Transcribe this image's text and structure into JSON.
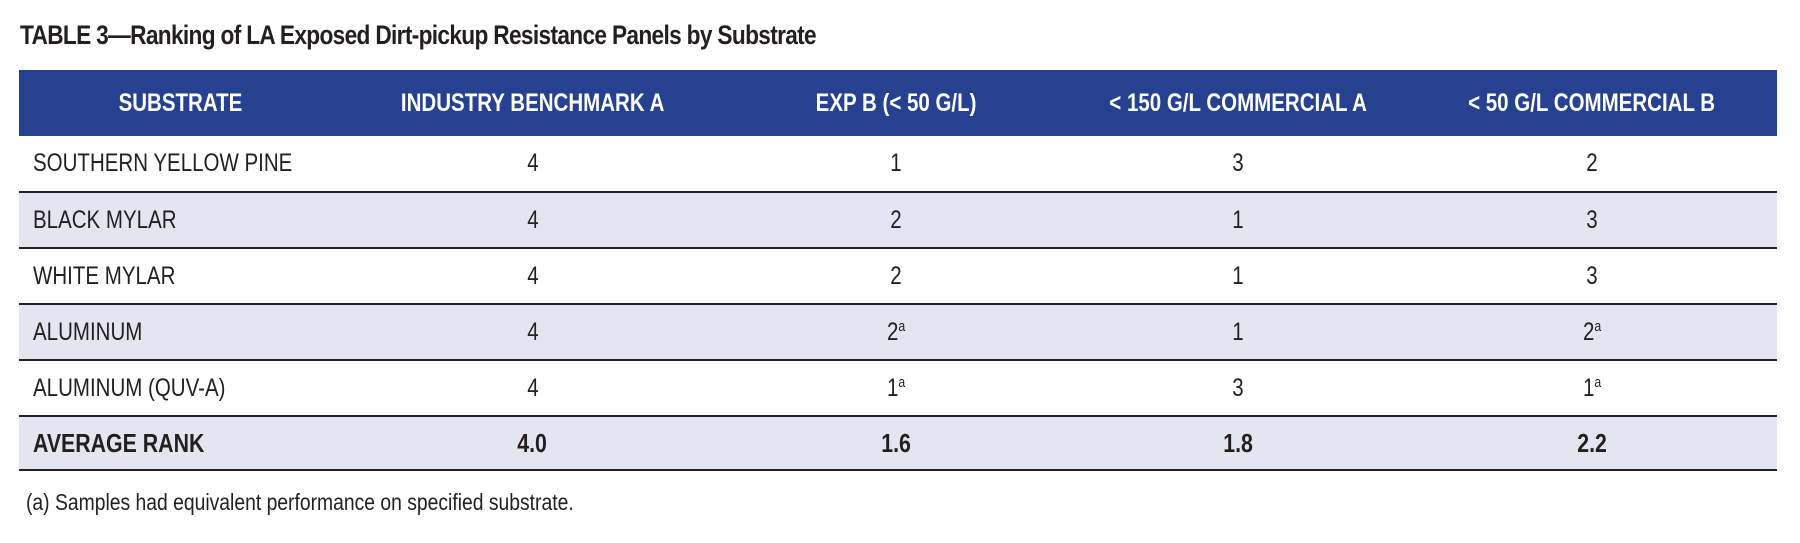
{
  "title": "TABLE 3—Ranking of LA Exposed Dirt-pickup Resistance Panels by Substrate",
  "header_bg_color": "#26418f",
  "row_shade_color": "#e3e5f0",
  "columns": [
    "SUBSTRATE",
    "INDUSTRY BENCHMARK A",
    "EXP B (< 50 G/L)",
    "< 150 G/L COMMERCIAL A",
    "< 50 G/L COMMERCIAL B"
  ],
  "rows": [
    {
      "substrate": "SOUTHERN YELLOW PINE",
      "cells": [
        {
          "value": "4",
          "sup": ""
        },
        {
          "value": "1",
          "sup": ""
        },
        {
          "value": "3",
          "sup": ""
        },
        {
          "value": "2",
          "sup": ""
        }
      ]
    },
    {
      "substrate": "BLACK MYLAR",
      "cells": [
        {
          "value": "4",
          "sup": ""
        },
        {
          "value": "2",
          "sup": ""
        },
        {
          "value": "1",
          "sup": ""
        },
        {
          "value": "3",
          "sup": ""
        }
      ]
    },
    {
      "substrate": "WHITE MYLAR",
      "cells": [
        {
          "value": "4",
          "sup": ""
        },
        {
          "value": "2",
          "sup": ""
        },
        {
          "value": "1",
          "sup": ""
        },
        {
          "value": "3",
          "sup": ""
        }
      ]
    },
    {
      "substrate": "ALUMINUM",
      "cells": [
        {
          "value": "4",
          "sup": ""
        },
        {
          "value": "2",
          "sup": "a"
        },
        {
          "value": "1",
          "sup": ""
        },
        {
          "value": "2",
          "sup": "a"
        }
      ]
    },
    {
      "substrate": "ALUMINUM (QUV-A)",
      "cells": [
        {
          "value": "4",
          "sup": ""
        },
        {
          "value": "1",
          "sup": "a"
        },
        {
          "value": "3",
          "sup": ""
        },
        {
          "value": "1",
          "sup": "a"
        }
      ]
    }
  ],
  "average": {
    "label": "AVERAGE RANK",
    "values": [
      "4.0",
      "1.6",
      "1.8",
      "2.2"
    ]
  },
  "footnote": "(a) Samples had equivalent performance on specified substrate."
}
